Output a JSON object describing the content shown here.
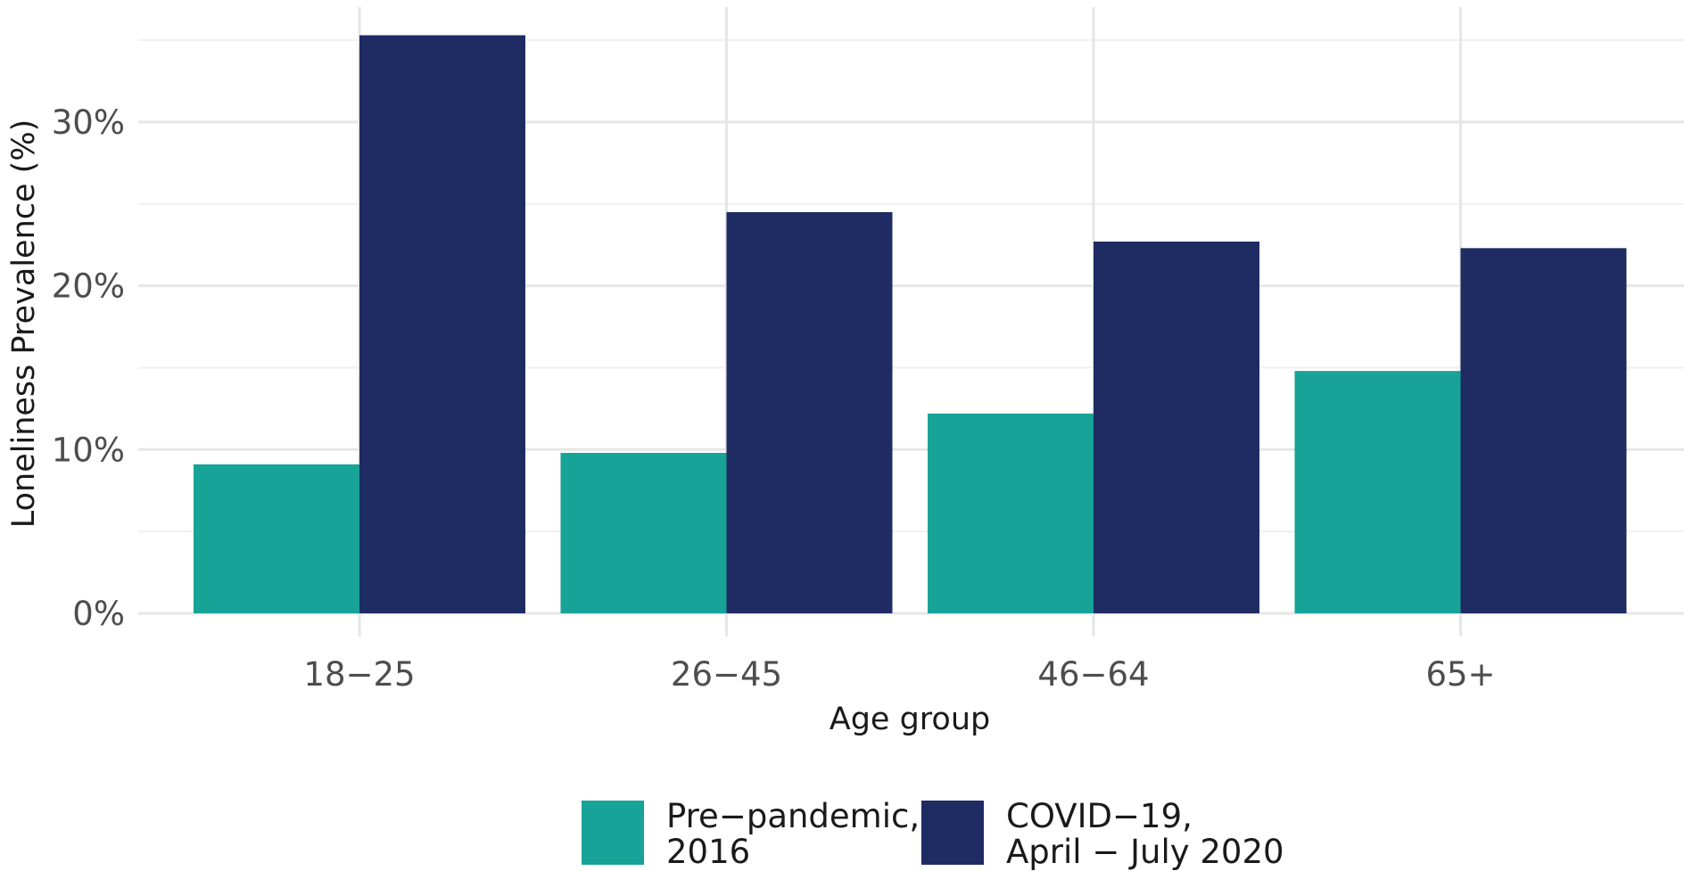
{
  "chart_data": {
    "type": "bar",
    "title": "",
    "xlabel": "Age group",
    "ylabel": "Loneliness Prevalence (%)",
    "categories": [
      "18-25",
      "26-45",
      "46-64",
      "65+"
    ],
    "ylim": [
      0,
      37
    ],
    "yticks": [
      {
        "value": 0,
        "label": "0%"
      },
      {
        "value": 10,
        "label": "10%"
      },
      {
        "value": 20,
        "label": "20%"
      },
      {
        "value": 30,
        "label": "30%"
      }
    ],
    "grid": true,
    "legend_position": "bottom",
    "series": [
      {
        "name": "Pre-pandemic, 2016",
        "legend_lines": [
          "Pre−pandemic,",
          "2016"
        ],
        "color": "#17a398",
        "values": [
          9.1,
          9.8,
          12.2,
          14.8
        ]
      },
      {
        "name": "COVID-19, April - July 2020",
        "legend_lines": [
          "COVID−19,",
          "April − July 2020"
        ],
        "color": "#1f2b63",
        "values": [
          35.3,
          24.5,
          22.7,
          22.3
        ]
      }
    ],
    "category_labels": [
      "18−25",
      "26−45",
      "46−64",
      "65+"
    ]
  }
}
